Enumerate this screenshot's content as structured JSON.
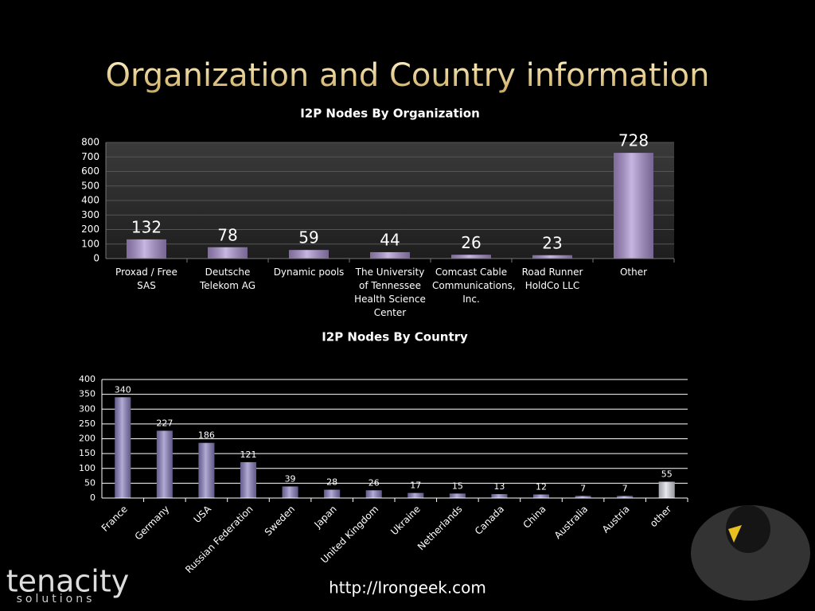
{
  "slide": {
    "title": "Organization and Country information",
    "url": "http://Irongeek.com",
    "logo": [
      "tenacity",
      "solutions"
    ]
  },
  "chart_data": [
    {
      "type": "bar",
      "title": "I2P Nodes By Organization",
      "categories": [
        "Proxad / Free SAS",
        "Deutsche Telekom AG",
        "Dynamic pools",
        "The University of Tennessee Health Science Center",
        "Comcast Cable Communications, Inc.",
        "Road Runner HoldCo LLC",
        "Other"
      ],
      "values": [
        132,
        78,
        59,
        44,
        26,
        23,
        728
      ],
      "color": "#a98fd0",
      "ylim": [
        0,
        800
      ],
      "yticks": [
        0,
        100,
        200,
        300,
        400,
        500,
        600,
        700,
        800
      ],
      "grid": true
    },
    {
      "type": "bar",
      "title": "I2P Nodes By Country",
      "categories": [
        "France",
        "Germany",
        "USA",
        "Russian Federation",
        "Sweden",
        "Japan",
        "United Kingdom",
        "Ukraine",
        "Netherlands",
        "Canada",
        "China",
        "Australia",
        "Austria",
        "other"
      ],
      "values": [
        340,
        227,
        186,
        121,
        39,
        28,
        26,
        17,
        15,
        13,
        12,
        7,
        7,
        55
      ],
      "colors": [
        "#8a7fc0",
        "#8a7fc0",
        "#8a7fc0",
        "#8a7fc0",
        "#8a7fc0",
        "#8a7fc0",
        "#8a7fc0",
        "#8a7fc0",
        "#8a7fc0",
        "#8a7fc0",
        "#8a7fc0",
        "#8a7fc0",
        "#8a7fc0",
        "#dcdce6"
      ],
      "ylim": [
        0,
        400
      ],
      "yticks": [
        0,
        50,
        100,
        150,
        200,
        250,
        300,
        350,
        400
      ],
      "grid": true
    }
  ]
}
